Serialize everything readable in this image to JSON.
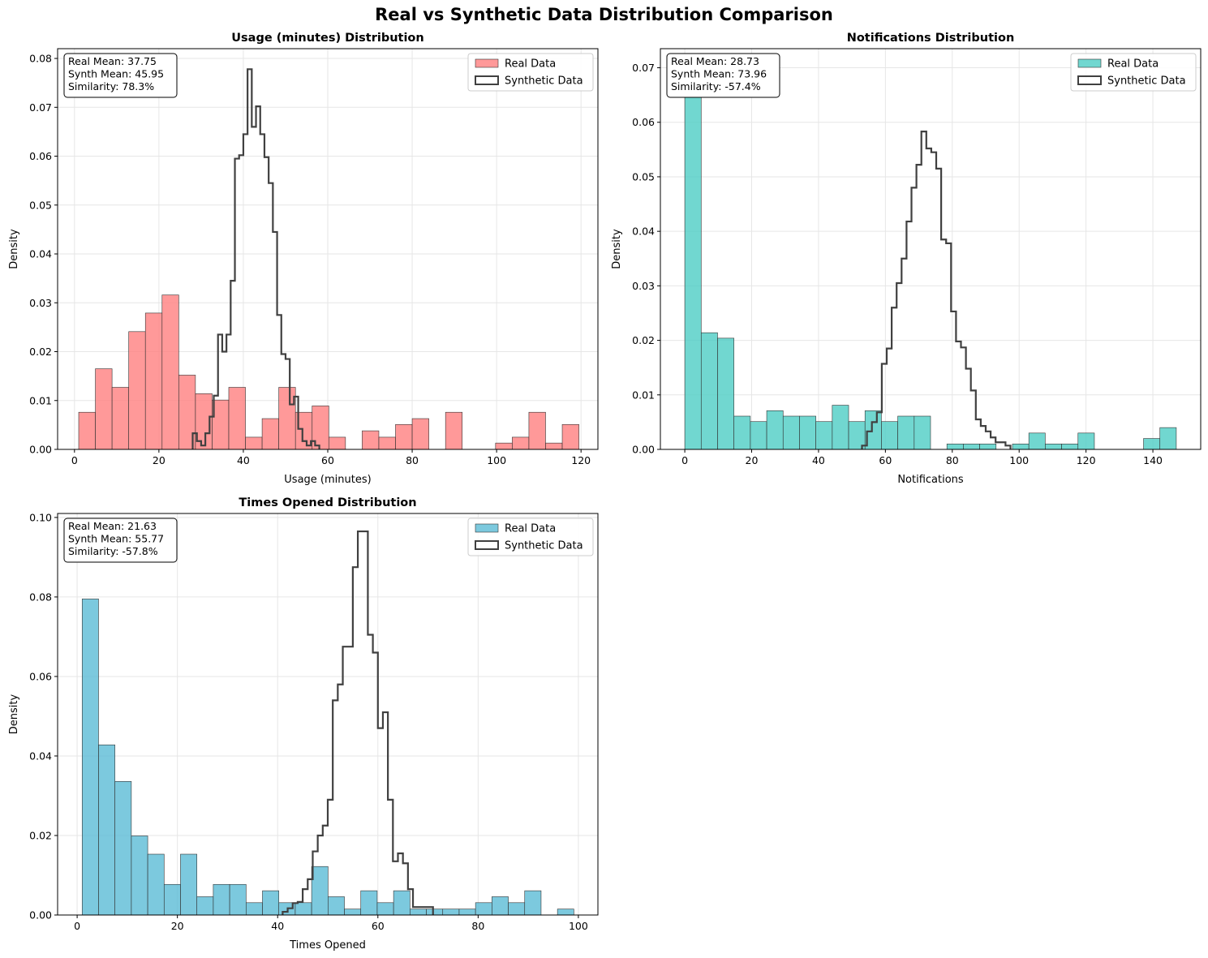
{
  "figure": {
    "title": "Real vs Synthetic Data Distribution Comparison"
  },
  "colors": {
    "synthetic_line": "#404040",
    "edge": "#333333",
    "grid": "#e6e6e6"
  },
  "chart_data": [
    {
      "type": "bar",
      "title": "Usage (minutes) Distribution",
      "xlabel": "Usage (minutes)",
      "ylabel": "Density",
      "xlim": [
        -4,
        124
      ],
      "ylim": [
        0,
        0.082
      ],
      "xticks": [
        0,
        20,
        40,
        60,
        80,
        100,
        120
      ],
      "yticks": [
        0.0,
        0.01,
        0.02,
        0.03,
        0.04,
        0.05,
        0.06,
        0.07,
        0.08
      ],
      "ytick_decimals": 2,
      "grid": true,
      "legend": "upper right",
      "stats": [
        "Real Mean: 37.75",
        "Synth Mean: 45.95",
        "Similarity: 78.3%"
      ],
      "series": [
        {
          "name": "Real Data",
          "kind": "histogram",
          "color": "#ff8080",
          "bin_start": 1,
          "bin_width": 3.95,
          "values": [
            0.0076,
            0.0165,
            0.0127,
            0.0241,
            0.0279,
            0.0316,
            0.0152,
            0.0114,
            0.0101,
            0.0127,
            0.0025,
            0.0063,
            0.0127,
            0.0076,
            0.0089,
            0.0025,
            0,
            0.0038,
            0.0025,
            0.0051,
            0.0063,
            0,
            0.0076,
            0,
            0,
            0.0013,
            0.0025,
            0.0076,
            0.0013,
            0.0051
          ]
        },
        {
          "name": "Synthetic Data",
          "kind": "step",
          "bin_start": 28,
          "bin_width": 1.0,
          "values": [
            0.0033,
            0.0017,
            0.0008,
            0.0033,
            0.0067,
            0.011,
            0.0235,
            0.02,
            0.0235,
            0.0345,
            0.0595,
            0.0602,
            0.0645,
            0.0778,
            0.066,
            0.0702,
            0.0645,
            0.0598,
            0.0545,
            0.0445,
            0.0275,
            0.0195,
            0.0185,
            0.0092,
            0.0108,
            0.0042,
            0.0017,
            0.0008,
            0.0017,
            0.0008
          ]
        }
      ]
    },
    {
      "type": "bar",
      "title": "Notifications Distribution",
      "xlabel": "Notifications",
      "ylabel": "Density",
      "xlim": [
        -7.3,
        154.3
      ],
      "ylim": [
        0,
        0.0735
      ],
      "xticks": [
        0,
        20,
        40,
        60,
        80,
        100,
        120,
        140
      ],
      "yticks": [
        0.0,
        0.01,
        0.02,
        0.03,
        0.04,
        0.05,
        0.06,
        0.07
      ],
      "ytick_decimals": 2,
      "grid": true,
      "legend": "upper right",
      "stats": [
        "Real Mean: 28.73",
        "Synth Mean: 73.96",
        "Similarity: -57.4%"
      ],
      "series": [
        {
          "name": "Real Data",
          "kind": "histogram",
          "color": "#4ecdc4",
          "bin_start": 0,
          "bin_width": 4.9,
          "values": [
            0.07,
            0.0214,
            0.0204,
            0.0061,
            0.0051,
            0.0071,
            0.0061,
            0.0061,
            0.0051,
            0.0081,
            0.0051,
            0.0071,
            0.0051,
            0.0061,
            0.0061,
            0,
            0.001,
            0.001,
            0.001,
            0,
            0.001,
            0.003,
            0.001,
            0.001,
            0.003,
            0,
            0,
            0,
            0.002,
            0.004
          ]
        },
        {
          "name": "Synthetic Data",
          "kind": "step",
          "bin_start": 53,
          "bin_width": 1.48,
          "values": [
            0.0007,
            0.0033,
            0.005,
            0.0068,
            0.0157,
            0.0185,
            0.026,
            0.0305,
            0.035,
            0.0418,
            0.048,
            0.0522,
            0.0583,
            0.0552,
            0.0545,
            0.0515,
            0.0385,
            0.0378,
            0.0253,
            0.0198,
            0.0187,
            0.0148,
            0.0108,
            0.0055,
            0.0043,
            0.0033,
            0.0022,
            0.0013,
            0.0013,
            0.0007
          ]
        }
      ]
    },
    {
      "type": "bar",
      "title": "Times Opened Distribution",
      "xlabel": "Times Opened",
      "ylabel": "Density",
      "xlim": [
        -3.9,
        103.9
      ],
      "ylim": [
        0,
        0.101
      ],
      "xticks": [
        0,
        20,
        40,
        60,
        80,
        100
      ],
      "yticks": [
        0.0,
        0.02,
        0.04,
        0.06,
        0.08,
        0.1
      ],
      "ytick_decimals": 2,
      "grid": true,
      "legend": "upper right",
      "stats": [
        "Real Mean: 21.63",
        "Synth Mean: 55.77",
        "Similarity: -57.8%"
      ],
      "series": [
        {
          "name": "Real Data",
          "kind": "histogram",
          "color": "#5bbcd6",
          "bin_start": 1,
          "bin_width": 3.27,
          "values": [
            0.0795,
            0.0428,
            0.0336,
            0.0199,
            0.0153,
            0.0077,
            0.0153,
            0.0046,
            0.0077,
            0.0077,
            0.0031,
            0.0061,
            0.0031,
            0.0031,
            0.0122,
            0.0046,
            0.0015,
            0.0061,
            0.0031,
            0.0061,
            0.0015,
            0.0015,
            0.0015,
            0.0015,
            0.0031,
            0.0046,
            0.0031,
            0.0061,
            0,
            0.0015
          ]
        },
        {
          "name": "Synthetic Data",
          "kind": "step",
          "bin_start": 41,
          "bin_width": 1.0,
          "values": [
            0.0008,
            0.0017,
            0.003,
            0.0033,
            0.0065,
            0.009,
            0.016,
            0.02,
            0.0225,
            0.029,
            0.054,
            0.058,
            0.0675,
            0.0675,
            0.0875,
            0.0965,
            0.0965,
            0.0705,
            0.066,
            0.047,
            0.051,
            0.029,
            0.0135,
            0.0155,
            0.013,
            0.0065,
            0.002,
            0.002,
            0.002,
            0.002
          ]
        }
      ]
    }
  ]
}
